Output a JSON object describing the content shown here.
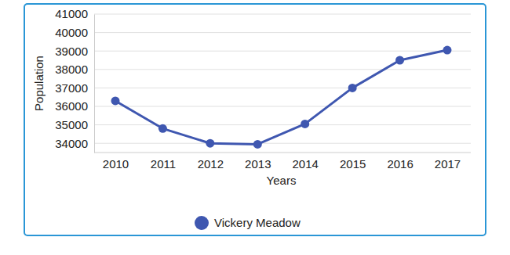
{
  "chart_data": {
    "type": "line",
    "x_label": "Years",
    "y_label": "Population",
    "categories": [
      "2010",
      "2011",
      "2012",
      "2013",
      "2014",
      "2015",
      "2016",
      "2017"
    ],
    "series": [
      {
        "name": "Vickery Meadow",
        "color": "#3f57b0",
        "marker": "circle",
        "values": [
          36300,
          34800,
          34000,
          33950,
          35050,
          37000,
          38500,
          39050
        ]
      }
    ],
    "ylim": [
      33500,
      41000
    ],
    "yticks": [
      34000,
      35000,
      36000,
      37000,
      38000,
      39000,
      40000,
      41000
    ],
    "grid": true,
    "legend": "bottom"
  }
}
